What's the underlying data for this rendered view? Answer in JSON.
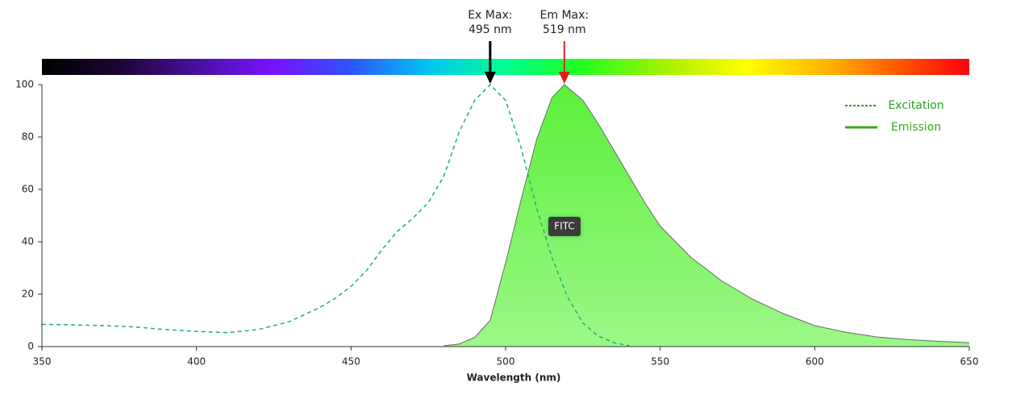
{
  "chart_data": {
    "type": "spectra",
    "x_label": "Wavelength (nm)",
    "label": "FITC",
    "xlim": [
      350,
      650
    ],
    "xticks": [
      350,
      400,
      450,
      500,
      550,
      600,
      650
    ],
    "ylim": [
      0,
      100
    ],
    "yticks": [
      0,
      20,
      40,
      60,
      80,
      100
    ],
    "legend_position": "upper right",
    "annotations": [
      {
        "title": "Ex Max:",
        "x": 495,
        "x_label": "495 nm",
        "color": "#000000"
      },
      {
        "title": "Em Max:",
        "x": 519,
        "x_label": "519 nm",
        "color": "#e02020"
      }
    ],
    "series": [
      {
        "name": "Excitation",
        "style": "dashed",
        "color": "#1fae7a",
        "legend_color": "#2aa02a",
        "x": [
          350,
          360,
          370,
          380,
          390,
          400,
          410,
          420,
          430,
          440,
          445,
          450,
          455,
          460,
          465,
          470,
          475,
          480,
          485,
          490,
          495,
          500,
          505,
          510,
          515,
          520,
          525,
          530,
          535,
          540
        ],
        "values": [
          8.5,
          8.3,
          8,
          7.5,
          6.5,
          5.8,
          5.3,
          6.5,
          9.5,
          15,
          18.5,
          23,
          29,
          37,
          44,
          49,
          55,
          65,
          82,
          94,
          100,
          94,
          76,
          53,
          34,
          19,
          9,
          4,
          1.5,
          0.3
        ]
      },
      {
        "name": "Emission",
        "style": "area",
        "color": "#6ef048",
        "legend_color": "#3aa81a",
        "x": [
          480,
          485,
          490,
          495,
          500,
          505,
          510,
          515,
          519,
          525,
          530,
          535,
          540,
          545,
          550,
          560,
          570,
          580,
          590,
          600,
          610,
          620,
          630,
          640,
          650
        ],
        "values": [
          0.3,
          1,
          3.5,
          10,
          32,
          56,
          79,
          95,
          100,
          94,
          85,
          75,
          65,
          55,
          46,
          34,
          25,
          18,
          12.5,
          8,
          5.5,
          3.7,
          2.7,
          2,
          1.5
        ]
      }
    ]
  }
}
